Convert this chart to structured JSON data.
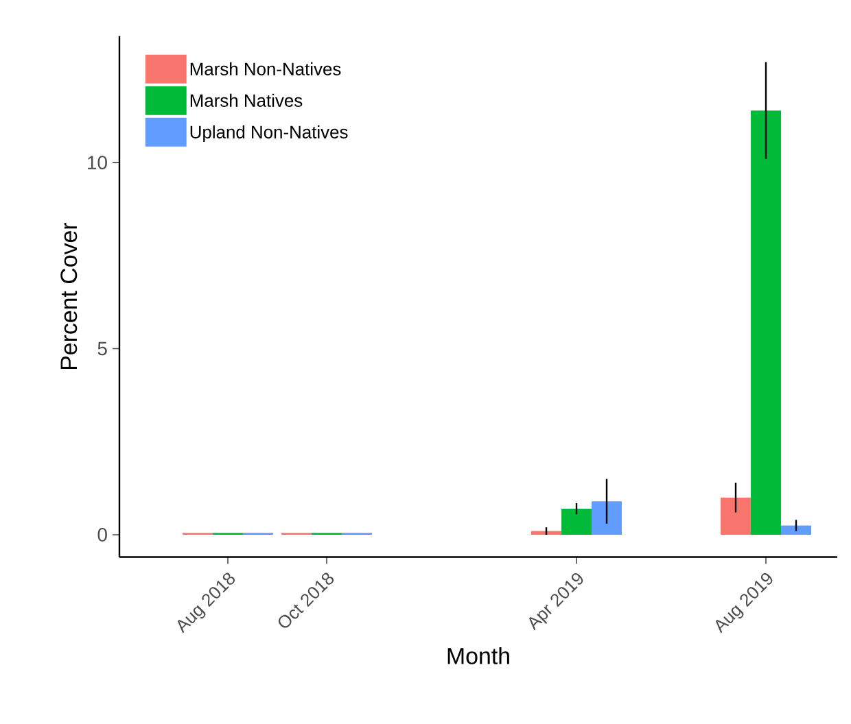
{
  "chart_data": {
    "type": "bar",
    "xlabel": "Month",
    "ylabel": "Percent Cover",
    "x": [
      "2018-08-01",
      "2018-10-12",
      "2019-04-12",
      "2019-08-28"
    ],
    "xlim": [
      "2018-05-14",
      "2019-10-19"
    ],
    "xticks": [
      {
        "value": "2018-08-01",
        "label": "Aug 2018"
      },
      {
        "value": "2018-10-12",
        "label": "Oct 2018"
      },
      {
        "value": "2019-04-12",
        "label": "Apr 2019"
      },
      {
        "value": "2019-08-28",
        "label": "Aug 2019"
      }
    ],
    "ylim": [
      -0.6,
      13.4
    ],
    "yticks": [
      0,
      5,
      10
    ],
    "grid": false,
    "legend": "top left",
    "series": [
      {
        "name": "Marsh Non-Natives",
        "color": "#F8766D",
        "values": [
          0.05,
          0.05,
          0.1,
          1.0
        ],
        "errors": [
          null,
          null,
          [
            0.0,
            0.2
          ],
          [
            0.6,
            1.4
          ]
        ]
      },
      {
        "name": "Marsh Natives",
        "color": "#00BA38",
        "values": [
          0.05,
          0.05,
          0.7,
          11.4
        ],
        "errors": [
          null,
          null,
          [
            0.55,
            0.85
          ],
          [
            10.1,
            12.7
          ]
        ]
      },
      {
        "name": "Upland Non-Natives",
        "color": "#619CFF",
        "values": [
          0.05,
          0.05,
          0.9,
          0.25
        ],
        "errors": [
          null,
          null,
          [
            0.3,
            1.5
          ],
          [
            0.1,
            0.4
          ]
        ]
      }
    ]
  }
}
